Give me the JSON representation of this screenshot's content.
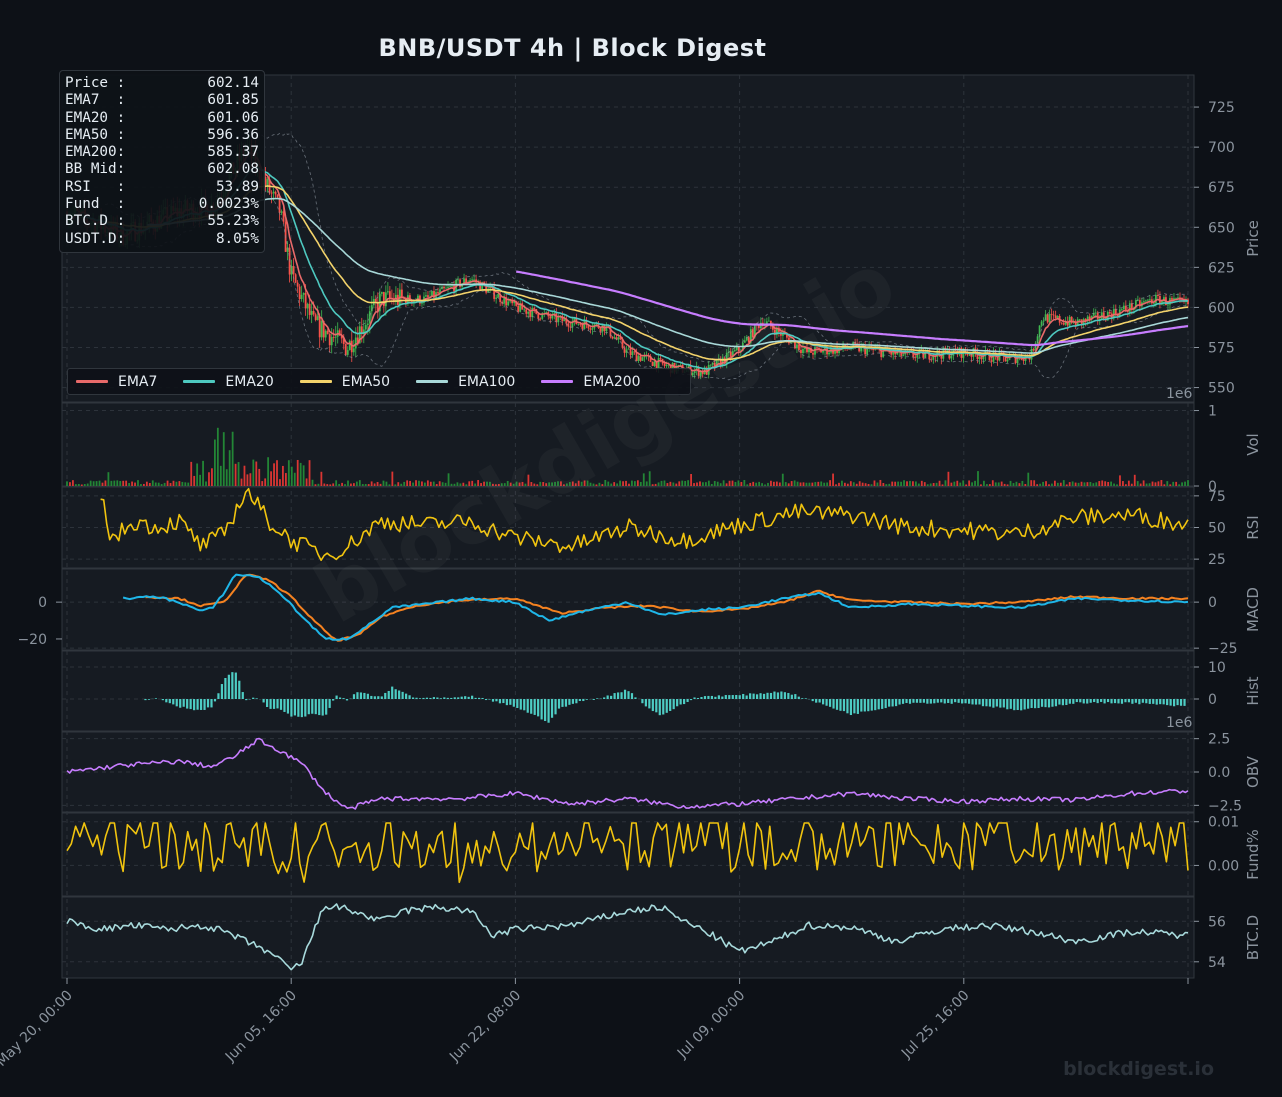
{
  "title": "BNB/USDT  4h  |  Block Digest",
  "watermark_center": "blockdigest.io",
  "watermark_footer": "blockdigest.io",
  "info_box": [
    {
      "label": "Price :",
      "value": "602.14"
    },
    {
      "label": "EMA7  :",
      "value": "601.85"
    },
    {
      "label": "EMA20 :",
      "value": "601.06"
    },
    {
      "label": "EMA50 :",
      "value": "596.36"
    },
    {
      "label": "EMA200:",
      "value": "585.37"
    },
    {
      "label": "BB Mid:",
      "value": "602.08"
    },
    {
      "label": "RSI   :",
      "value": "53.89"
    },
    {
      "label": "Fund  :",
      "value": "0.0023%"
    },
    {
      "label": "BTC.D :",
      "value": "55.23%"
    },
    {
      "label": "USDT.D:",
      "value": "8.05%"
    }
  ],
  "legend": [
    {
      "label": "EMA7",
      "color": "#e86a6a"
    },
    {
      "label": "EMA20",
      "color": "#4ec9c0"
    },
    {
      "label": "EMA50",
      "color": "#f3d36b"
    },
    {
      "label": "EMA100",
      "color": "#a8d8d8"
    },
    {
      "label": "EMA200",
      "color": "#c77dff"
    }
  ],
  "chart_data": {
    "type": "candlestick-multi-panel",
    "x_ticks": [
      "May 20, 00:00",
      "Jun 05, 16:00",
      "Jun 22, 08:00",
      "Jul 09, 00:00",
      "Jul 25, 16:00"
    ],
    "panels": [
      {
        "name": "price",
        "ylabel": "Price",
        "yticks": [
          550,
          575,
          600,
          625,
          650,
          675,
          700,
          725
        ],
        "ylim": [
          541,
          745
        ],
        "series": [
          {
            "name": "EMA7",
            "color": "#e86a6a"
          },
          {
            "name": "EMA20",
            "color": "#4ec9c0"
          },
          {
            "name": "EMA50",
            "color": "#f3d36b"
          },
          {
            "name": "EMA100",
            "color": "#a8d8d8"
          },
          {
            "name": "EMA200",
            "color": "#c77dff"
          }
        ],
        "price_path": [
          [
            0,
            660
          ],
          [
            0.05,
            645
          ],
          [
            0.1,
            660
          ],
          [
            0.13,
            663
          ],
          [
            0.16,
            700
          ],
          [
            0.19,
            660
          ],
          [
            0.2,
            620
          ],
          [
            0.22,
            590
          ],
          [
            0.25,
            575
          ],
          [
            0.28,
            605
          ],
          [
            0.32,
            605
          ],
          [
            0.36,
            618
          ],
          [
            0.4,
            600
          ],
          [
            0.44,
            592
          ],
          [
            0.48,
            588
          ],
          [
            0.5,
            572
          ],
          [
            0.54,
            562
          ],
          [
            0.57,
            560
          ],
          [
            0.6,
            574
          ],
          [
            0.62,
            592
          ],
          [
            0.66,
            572
          ],
          [
            0.7,
            575
          ],
          [
            0.75,
            570
          ],
          [
            0.8,
            572
          ],
          [
            0.84,
            568
          ],
          [
            0.86,
            570
          ],
          [
            0.87,
            594
          ],
          [
            0.9,
            590
          ],
          [
            0.94,
            598
          ],
          [
            0.97,
            605
          ],
          [
            1.0,
            602
          ]
        ]
      },
      {
        "name": "volume",
        "ylabel": "Vol",
        "yticks": [
          0,
          1
        ],
        "ylim": [
          0,
          1.1
        ],
        "exponent": "1e6"
      },
      {
        "name": "rsi",
        "ylabel": "RSI",
        "yticks": [
          25,
          50,
          75
        ],
        "ylim": [
          18,
          82
        ],
        "path": [
          [
            0.03,
            75
          ],
          [
            0.04,
            40
          ],
          [
            0.06,
            55
          ],
          [
            0.08,
            50
          ],
          [
            0.1,
            55
          ],
          [
            0.12,
            35
          ],
          [
            0.14,
            45
          ],
          [
            0.16,
            80
          ],
          [
            0.18,
            55
          ],
          [
            0.2,
            40
          ],
          [
            0.23,
            28
          ],
          [
            0.25,
            35
          ],
          [
            0.28,
            55
          ],
          [
            0.32,
            52
          ],
          [
            0.36,
            55
          ],
          [
            0.38,
            48
          ],
          [
            0.4,
            42
          ],
          [
            0.45,
            35
          ],
          [
            0.5,
            50
          ],
          [
            0.55,
            40
          ],
          [
            0.6,
            52
          ],
          [
            0.65,
            62
          ],
          [
            0.7,
            60
          ],
          [
            0.75,
            50
          ],
          [
            0.8,
            48
          ],
          [
            0.85,
            45
          ],
          [
            0.9,
            58
          ],
          [
            0.95,
            60
          ],
          [
            1.0,
            52
          ]
        ]
      },
      {
        "name": "macd",
        "ylabel": "MACD",
        "yticks_left": [
          0,
          -20
        ],
        "yticks_right": [
          0,
          -25
        ],
        "ylim": [
          -26,
          18
        ],
        "macd_path": [
          [
            0.05,
            2
          ],
          [
            0.08,
            3
          ],
          [
            0.1,
            0
          ],
          [
            0.12,
            -5
          ],
          [
            0.13,
            -3
          ],
          [
            0.14,
            5
          ],
          [
            0.15,
            15
          ],
          [
            0.17,
            14
          ],
          [
            0.19,
            5
          ],
          [
            0.21,
            -8
          ],
          [
            0.23,
            -20
          ],
          [
            0.25,
            -20
          ],
          [
            0.27,
            -12
          ],
          [
            0.29,
            -3
          ],
          [
            0.32,
            -1
          ],
          [
            0.36,
            2
          ],
          [
            0.4,
            0
          ],
          [
            0.43,
            -10
          ],
          [
            0.46,
            -5
          ],
          [
            0.5,
            0
          ],
          [
            0.53,
            -7
          ],
          [
            0.57,
            -4
          ],
          [
            0.6,
            -3
          ],
          [
            0.64,
            2
          ],
          [
            0.67,
            5
          ],
          [
            0.7,
            -3
          ],
          [
            0.75,
            -1
          ],
          [
            0.8,
            -2
          ],
          [
            0.85,
            -3
          ],
          [
            0.9,
            2
          ],
          [
            0.95,
            1
          ],
          [
            1.0,
            0
          ]
        ],
        "signal_path": [
          [
            0.07,
            3
          ],
          [
            0.1,
            2
          ],
          [
            0.12,
            -2
          ],
          [
            0.14,
            0
          ],
          [
            0.16,
            15
          ],
          [
            0.18,
            12
          ],
          [
            0.2,
            3
          ],
          [
            0.22,
            -10
          ],
          [
            0.24,
            -21
          ],
          [
            0.26,
            -18
          ],
          [
            0.28,
            -8
          ],
          [
            0.31,
            -2
          ],
          [
            0.35,
            1
          ],
          [
            0.4,
            2
          ],
          [
            0.44,
            -6
          ],
          [
            0.48,
            -3
          ],
          [
            0.52,
            -2
          ],
          [
            0.56,
            -5
          ],
          [
            0.6,
            -4
          ],
          [
            0.64,
            0
          ],
          [
            0.67,
            6
          ],
          [
            0.7,
            1
          ],
          [
            0.75,
            0
          ],
          [
            0.8,
            -1
          ],
          [
            0.85,
            0
          ],
          [
            0.9,
            3
          ],
          [
            0.95,
            2
          ],
          [
            1.0,
            2
          ]
        ]
      },
      {
        "name": "hist",
        "ylabel": "Hist",
        "yticks": [
          0,
          10
        ],
        "ylim": [
          -10,
          15
        ],
        "exponent": "1e6"
      },
      {
        "name": "obv",
        "ylabel": "OBV",
        "yticks": [
          -2.5,
          0.0,
          2.5
        ],
        "ylim": [
          -3,
          3
        ],
        "path": [
          [
            0,
            0
          ],
          [
            0.05,
            0.5
          ],
          [
            0.1,
            0.8
          ],
          [
            0.13,
            0.4
          ],
          [
            0.15,
            1.2
          ],
          [
            0.17,
            2.4
          ],
          [
            0.19,
            1.6
          ],
          [
            0.21,
            0.6
          ],
          [
            0.23,
            -1.5
          ],
          [
            0.25,
            -2.8
          ],
          [
            0.28,
            -2
          ],
          [
            0.35,
            -2
          ],
          [
            0.4,
            -1.6
          ],
          [
            0.45,
            -2.4
          ],
          [
            0.5,
            -2
          ],
          [
            0.55,
            -2.6
          ],
          [
            0.6,
            -2.4
          ],
          [
            0.65,
            -2.0
          ],
          [
            0.7,
            -1.6
          ],
          [
            0.75,
            -2.0
          ],
          [
            0.8,
            -2.2
          ],
          [
            0.85,
            -2.0
          ],
          [
            0.9,
            -2.1
          ],
          [
            0.95,
            -1.6
          ],
          [
            1.0,
            -1.4
          ]
        ]
      },
      {
        "name": "funding",
        "ylabel": "Fund%",
        "yticks": [
          0.0,
          0.01
        ],
        "ylim": [
          -0.007,
          0.012
        ],
        "tick_format": "2dp"
      },
      {
        "name": "btcd",
        "ylabel": "BTC.D",
        "yticks": [
          54,
          56
        ],
        "ylim": [
          53.2,
          57.2
        ],
        "path": [
          [
            0,
            56
          ],
          [
            0.03,
            55.6
          ],
          [
            0.06,
            55.8
          ],
          [
            0.09,
            55.6
          ],
          [
            0.12,
            55.8
          ],
          [
            0.14,
            55.5
          ],
          [
            0.16,
            55
          ],
          [
            0.18,
            54.5
          ],
          [
            0.2,
            53.6
          ],
          [
            0.21,
            54
          ],
          [
            0.22,
            55.5
          ],
          [
            0.23,
            56.8
          ],
          [
            0.25,
            56.6
          ],
          [
            0.28,
            56
          ],
          [
            0.3,
            56.5
          ],
          [
            0.33,
            56.7
          ],
          [
            0.36,
            56.5
          ],
          [
            0.38,
            55.3
          ],
          [
            0.4,
            55.6
          ],
          [
            0.45,
            55.8
          ],
          [
            0.5,
            56.5
          ],
          [
            0.53,
            56.7
          ],
          [
            0.55,
            56
          ],
          [
            0.57,
            55.5
          ],
          [
            0.6,
            54.5
          ],
          [
            0.63,
            55
          ],
          [
            0.66,
            55.8
          ],
          [
            0.7,
            55.7
          ],
          [
            0.74,
            55
          ],
          [
            0.78,
            55.6
          ],
          [
            0.82,
            55.8
          ],
          [
            0.86,
            55.5
          ],
          [
            0.9,
            55
          ],
          [
            0.95,
            55.5
          ],
          [
            1.0,
            55.3
          ]
        ]
      }
    ]
  }
}
